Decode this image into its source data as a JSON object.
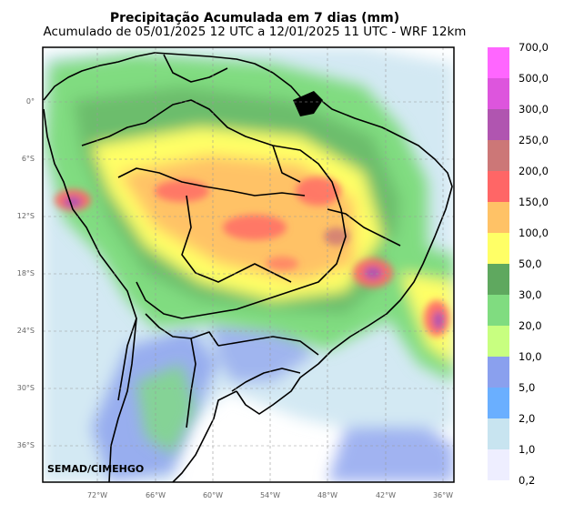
{
  "title": "Precipitação Acumulada em 7 dias (mm)",
  "subtitle": "Acumulado de 05/01/2025 12 UTC a 12/01/2025 11 UTC - WRF 12km",
  "credit": "SEMAD/CIMEHGO",
  "lat_labels": [
    "0°",
    "6°S",
    "12°S",
    "18°S",
    "24°S",
    "30°S",
    "36°S"
  ],
  "lon_labels": [
    "72°W",
    "66°W",
    "60°W",
    "54°W",
    "48°W",
    "42°W",
    "36°W"
  ],
  "colorbar": {
    "labels": [
      "700,0",
      "500,0",
      "300,0",
      "250,0",
      "200,0",
      "150,0",
      "100,0",
      "50,0",
      "30,0",
      "20,0",
      "10,0",
      "5,0",
      "2,0",
      "1,0",
      "0,2"
    ],
    "colors": [
      "#ff66ff",
      "#dd55dd",
      "#b055b0",
      "#cc7777",
      "#ff6666",
      "#ffc266",
      "#ffff66",
      "#5fa85f",
      "#80dc80",
      "#c8ff80",
      "#8aa0ee",
      "#6aafff",
      "#c8e4f0",
      "#eeeeff"
    ]
  }
}
